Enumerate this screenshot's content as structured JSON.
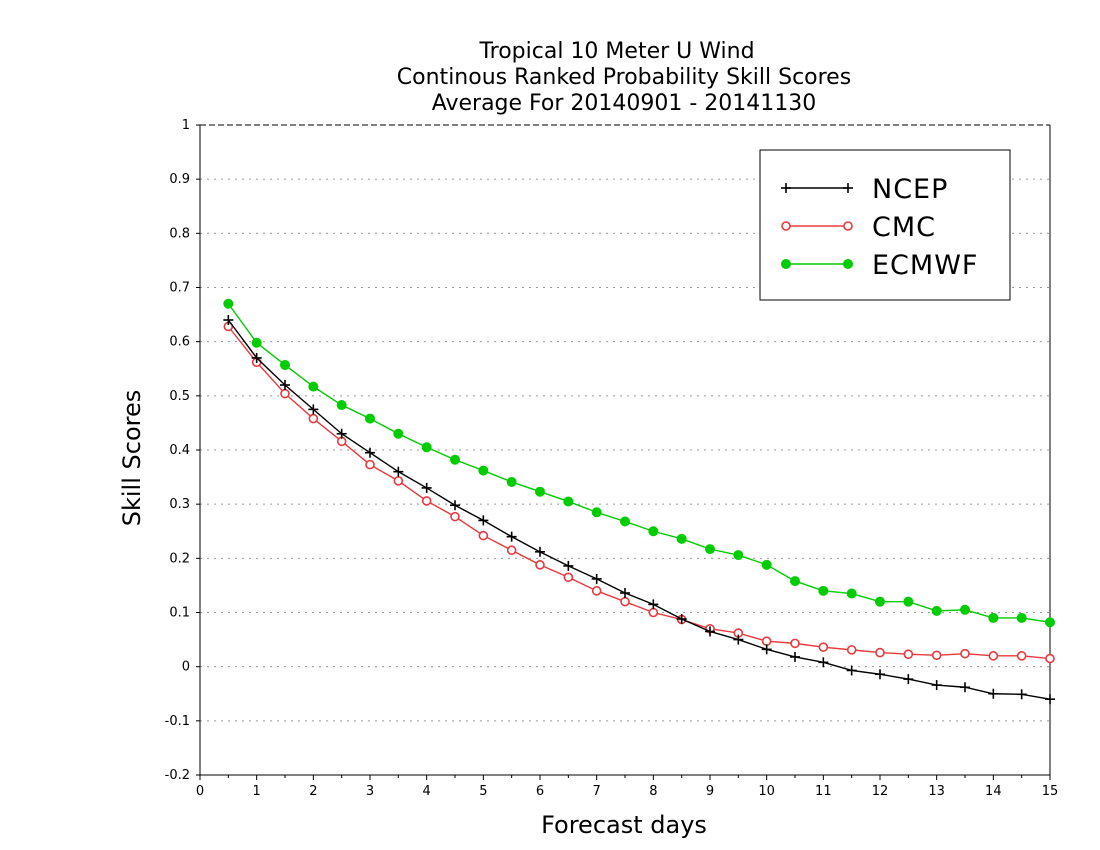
{
  "chart_data": {
    "type": "line",
    "title": [
      "Tropical 10 Meter U Wind",
      "Continous Ranked Probability Skill Scores",
      "Average For 20140901 - 20141130"
    ],
    "xlabel": "Forecast days",
    "ylabel": "Skill Scores",
    "xlim": [
      0,
      15
    ],
    "ylim": [
      -0.2,
      1
    ],
    "xticks": [
      "0",
      "1",
      "2",
      "3",
      "4",
      "5",
      "6",
      "7",
      "8",
      "9",
      "10",
      "11",
      "12",
      "13",
      "14",
      "15"
    ],
    "yticks": [
      "-0.2",
      "-0.1",
      "0",
      "0.1",
      "0.2",
      "0.3",
      "0.4",
      "0.5",
      "0.6",
      "0.7",
      "0.8",
      "0.9",
      "1"
    ],
    "grid": "horizontal dotted",
    "legend_position": "top-right",
    "x": [
      0.5,
      1,
      1.5,
      2,
      2.5,
      3,
      3.5,
      4,
      4.5,
      5,
      5.5,
      6,
      6.5,
      7,
      7.5,
      8,
      8.5,
      9,
      9.5,
      10,
      10.5,
      11,
      11.5,
      12,
      12.5,
      13,
      13.5,
      14,
      14.5,
      15
    ],
    "series": [
      {
        "name": "NCEP",
        "color": "#000000",
        "marker": "plus",
        "values": [
          0.64,
          0.57,
          0.52,
          0.475,
          0.43,
          0.395,
          0.36,
          0.33,
          0.298,
          0.27,
          0.24,
          0.212,
          0.186,
          0.162,
          0.136,
          0.115,
          0.088,
          0.065,
          0.05,
          0.032,
          0.018,
          0.008,
          -0.007,
          -0.014,
          -0.023,
          -0.034,
          -0.038,
          -0.05,
          -0.051,
          -0.06
        ]
      },
      {
        "name": "CMC",
        "color": "#e8383d",
        "marker": "open-circle",
        "values": [
          0.628,
          0.562,
          0.504,
          0.458,
          0.416,
          0.373,
          0.343,
          0.306,
          0.277,
          0.242,
          0.215,
          0.188,
          0.165,
          0.14,
          0.12,
          0.1,
          0.087,
          0.07,
          0.062,
          0.047,
          0.043,
          0.036,
          0.031,
          0.026,
          0.023,
          0.021,
          0.024,
          0.02,
          0.02,
          0.015
        ]
      },
      {
        "name": "ECMWF",
        "color": "#00cc00",
        "marker": "filled-circle",
        "values": [
          0.67,
          0.598,
          0.557,
          0.517,
          0.483,
          0.458,
          0.43,
          0.405,
          0.382,
          0.362,
          0.341,
          0.323,
          0.305,
          0.285,
          0.268,
          0.25,
          0.236,
          0.217,
          0.206,
          0.188,
          0.158,
          0.14,
          0.135,
          0.12,
          0.12,
          0.103,
          0.105,
          0.09,
          0.09,
          0.082
        ]
      }
    ]
  }
}
